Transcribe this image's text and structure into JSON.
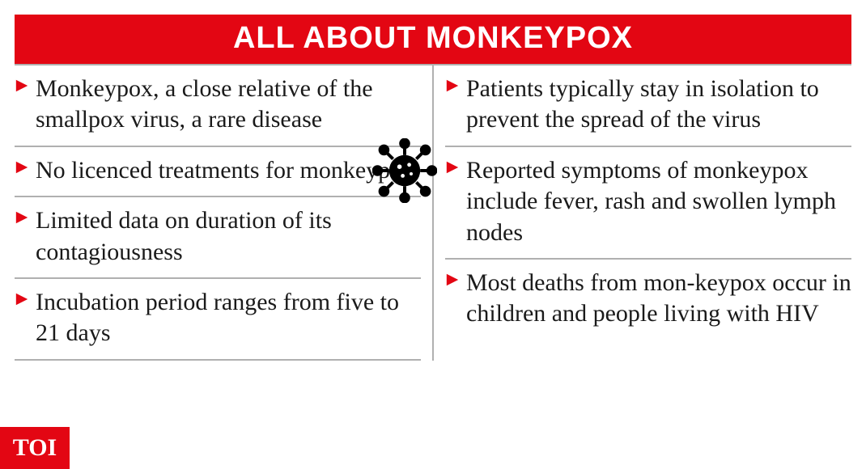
{
  "header": {
    "title": "ALL ABOUT MONKEYPOX",
    "bg_color": "#e30613",
    "text_color": "#ffffff",
    "fontsize": 38
  },
  "bullet": {
    "color": "#e30613",
    "size": 18
  },
  "text": {
    "color": "#1a1a1a",
    "fontsize": 30
  },
  "left_items": [
    "Monkeypox, a close relative of the smallpox virus, a rare disease",
    "No licenced treatments for monkeypox",
    "Limited data on duration of its contagiousness",
    "Incubation period ranges from five to 21 days"
  ],
  "right_items": [
    "Patients typically stay in isolation to prevent the spread of the virus",
    "Reported symptoms of monkeypox include fever, rash and swollen lymph nodes",
    "Most deaths from mon-keypox occur in children and people living with HIV"
  ],
  "virus_icon": {
    "color": "#000000",
    "size": 80
  },
  "toi_badge": {
    "text": "TOI",
    "bg_color": "#e30613",
    "text_color": "#ffffff",
    "width": 86,
    "height": 52,
    "fontsize": 30
  },
  "divider_color": "#b0b0b0"
}
